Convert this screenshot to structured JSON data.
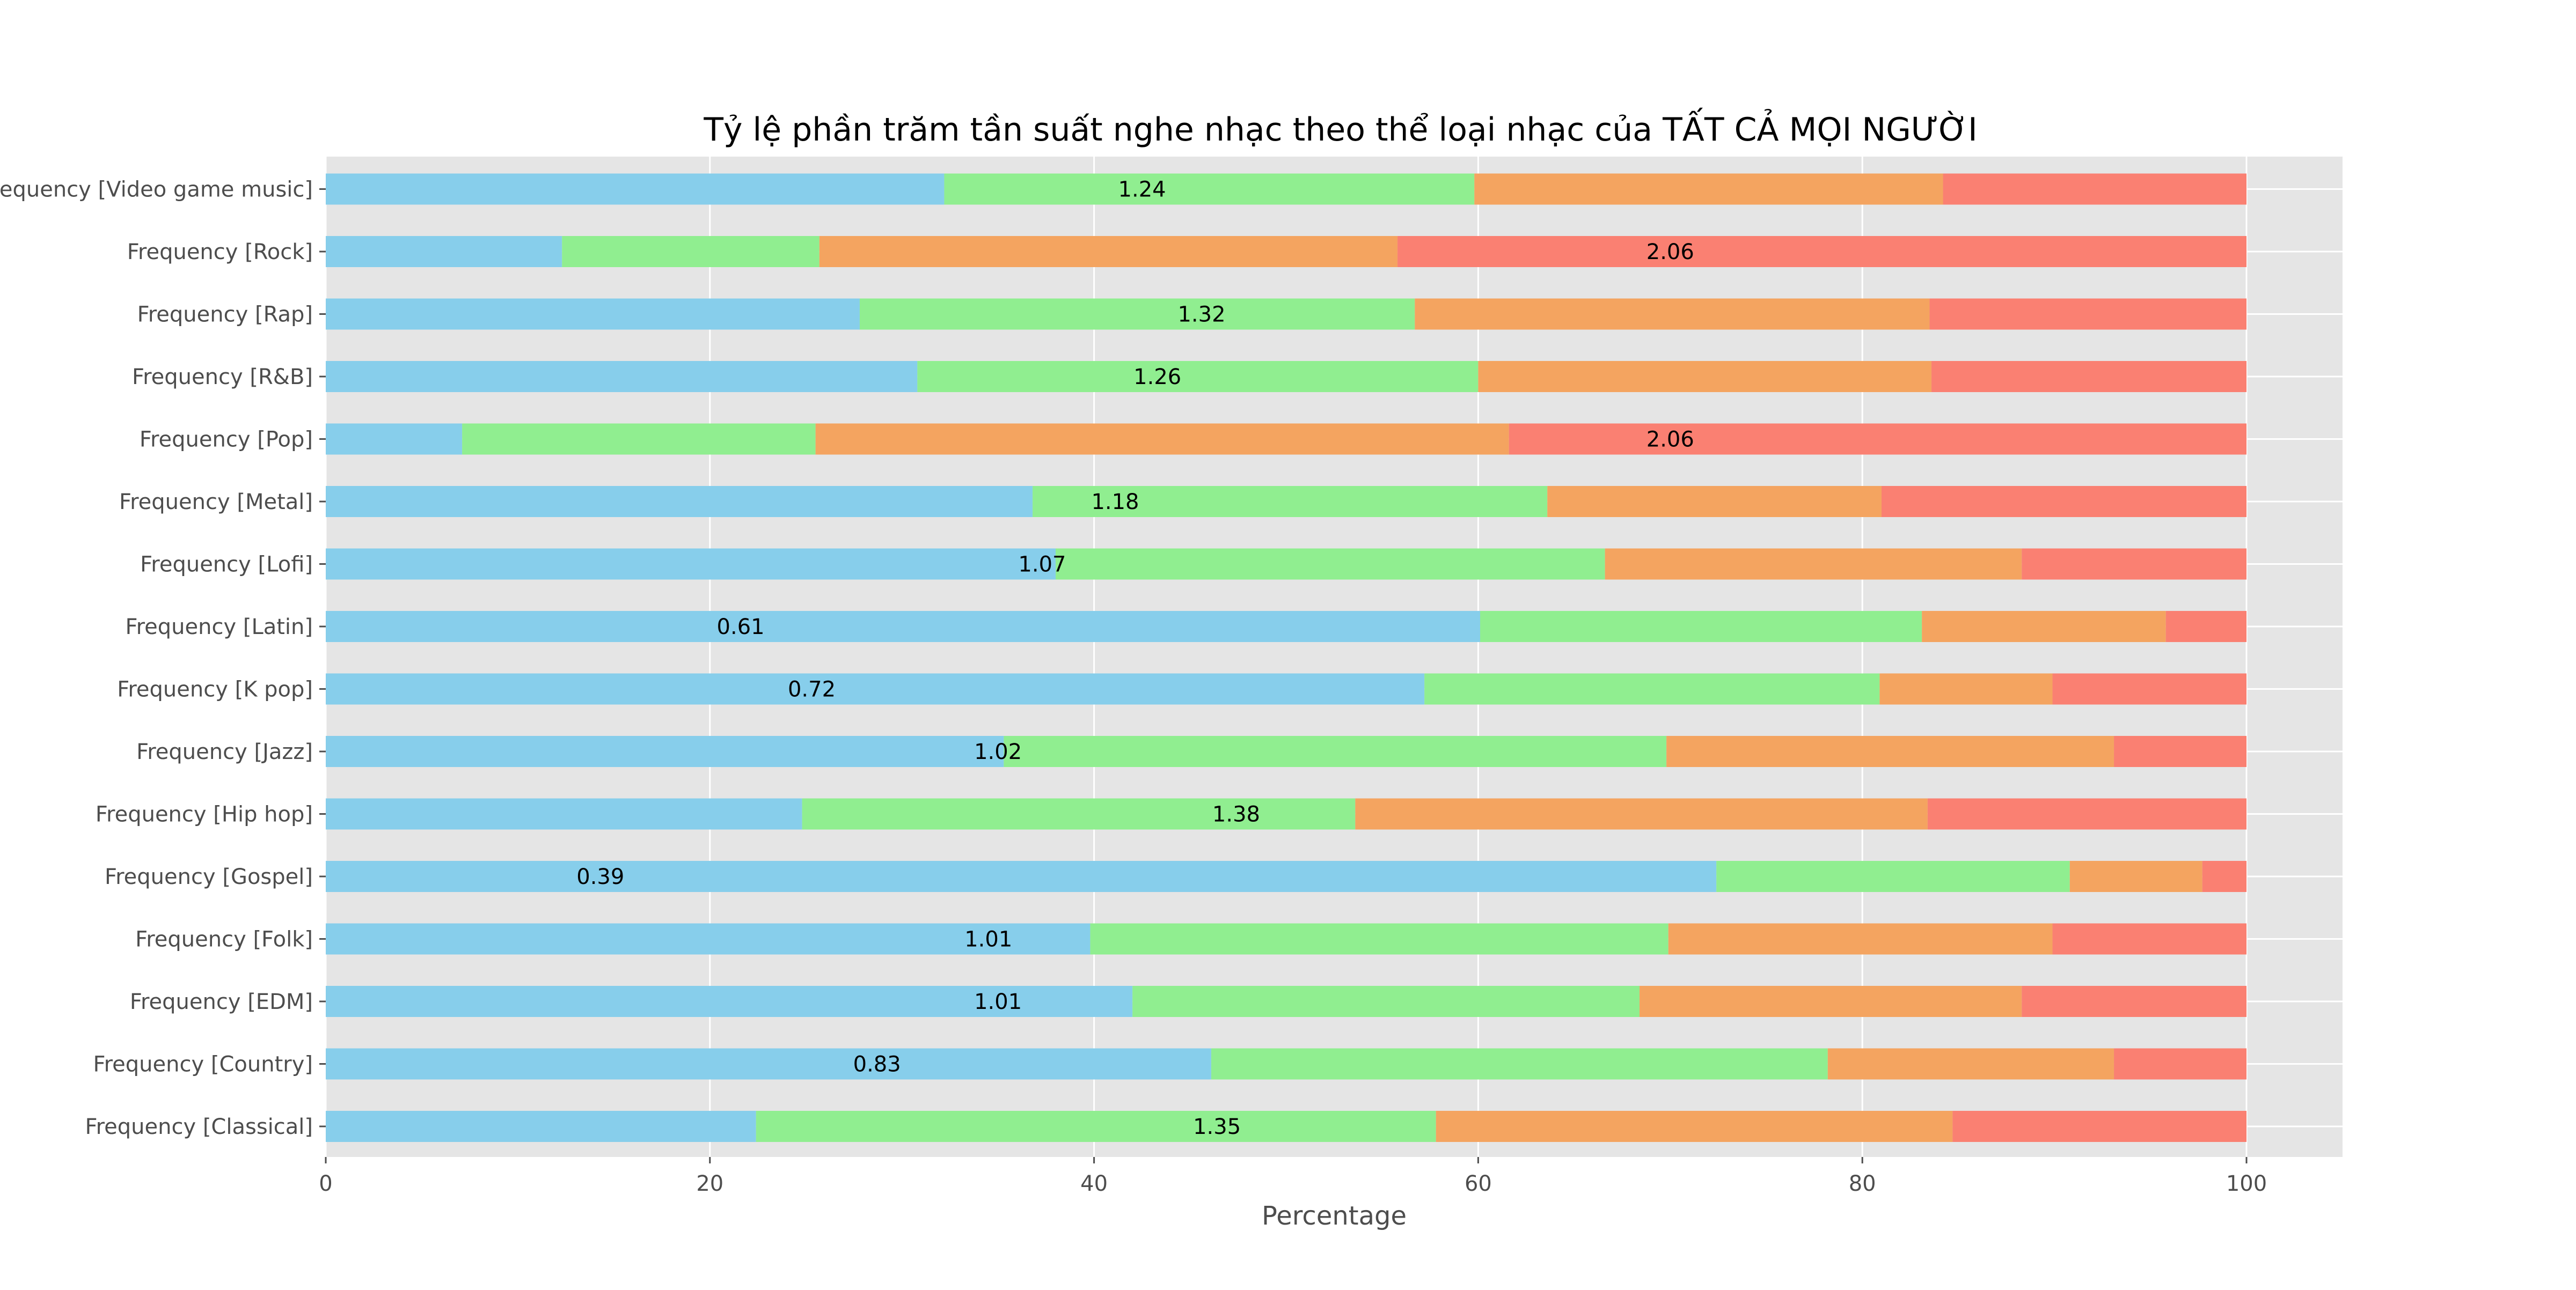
{
  "chart_data": {
    "type": "bar",
    "orientation": "horizontal",
    "stacked": true,
    "title": "Tỷ lệ phần trăm tần suất nghe nhạc theo thể loại nhạc của TẤT CẢ MỌI NGƯỜI",
    "xlabel": "Percentage",
    "ylabel": "",
    "xlim": [
      0,
      105
    ],
    "xticks": [
      0,
      20,
      40,
      60,
      80,
      100
    ],
    "grid": true,
    "legend": "none",
    "colors": [
      "#87ceeb",
      "#90ee90",
      "#f4a460",
      "#fa8072"
    ],
    "categories": [
      "Frequency [Classical]",
      "Frequency [Country]",
      "Frequency [EDM]",
      "Frequency [Folk]",
      "Frequency [Gospel]",
      "Frequency [Hip hop]",
      "Frequency [Jazz]",
      "Frequency [K pop]",
      "Frequency [Latin]",
      "Frequency [Lofi]",
      "Frequency [Metal]",
      "Frequency [Pop]",
      "Frequency [R&B]",
      "Frequency [Rap]",
      "Frequency [Rock]",
      "Frequency [Video game music]"
    ],
    "series": [
      {
        "values": [
          22.4,
          46.1,
          42.0,
          39.8,
          72.4,
          24.8,
          35.3,
          57.2,
          60.1,
          38.0,
          36.8,
          7.1,
          30.8,
          27.8,
          12.3,
          32.2
        ]
      },
      {
        "values": [
          35.4,
          32.1,
          26.4,
          30.1,
          18.4,
          28.8,
          34.5,
          23.7,
          23.0,
          28.6,
          26.8,
          18.4,
          29.2,
          28.9,
          13.4,
          27.6
        ]
      },
      {
        "values": [
          26.9,
          14.9,
          19.9,
          20.0,
          6.9,
          29.8,
          23.3,
          9.0,
          12.7,
          21.7,
          17.4,
          36.1,
          23.6,
          26.8,
          30.1,
          24.4
        ]
      },
      {
        "values": [
          15.3,
          6.9,
          11.7,
          10.1,
          2.3,
          16.6,
          6.9,
          10.1,
          4.2,
          11.7,
          19.0,
          38.4,
          16.4,
          16.5,
          44.2,
          15.8
        ]
      }
    ],
    "data_labels": [
      "1.35",
      "0.83",
      "1.01",
      "1.01",
      "0.39",
      "1.38",
      "1.02",
      "0.72",
      "0.61",
      "1.07",
      "1.18",
      "2.06",
      "1.26",
      "1.32",
      "2.06",
      "1.24"
    ],
    "label_x": [
      46.4,
      28.7,
      35.0,
      34.5,
      14.3,
      47.4,
      35.0,
      25.3,
      21.6,
      37.3,
      41.1,
      70.0,
      43.3,
      45.6,
      70.0,
      42.5
    ]
  }
}
